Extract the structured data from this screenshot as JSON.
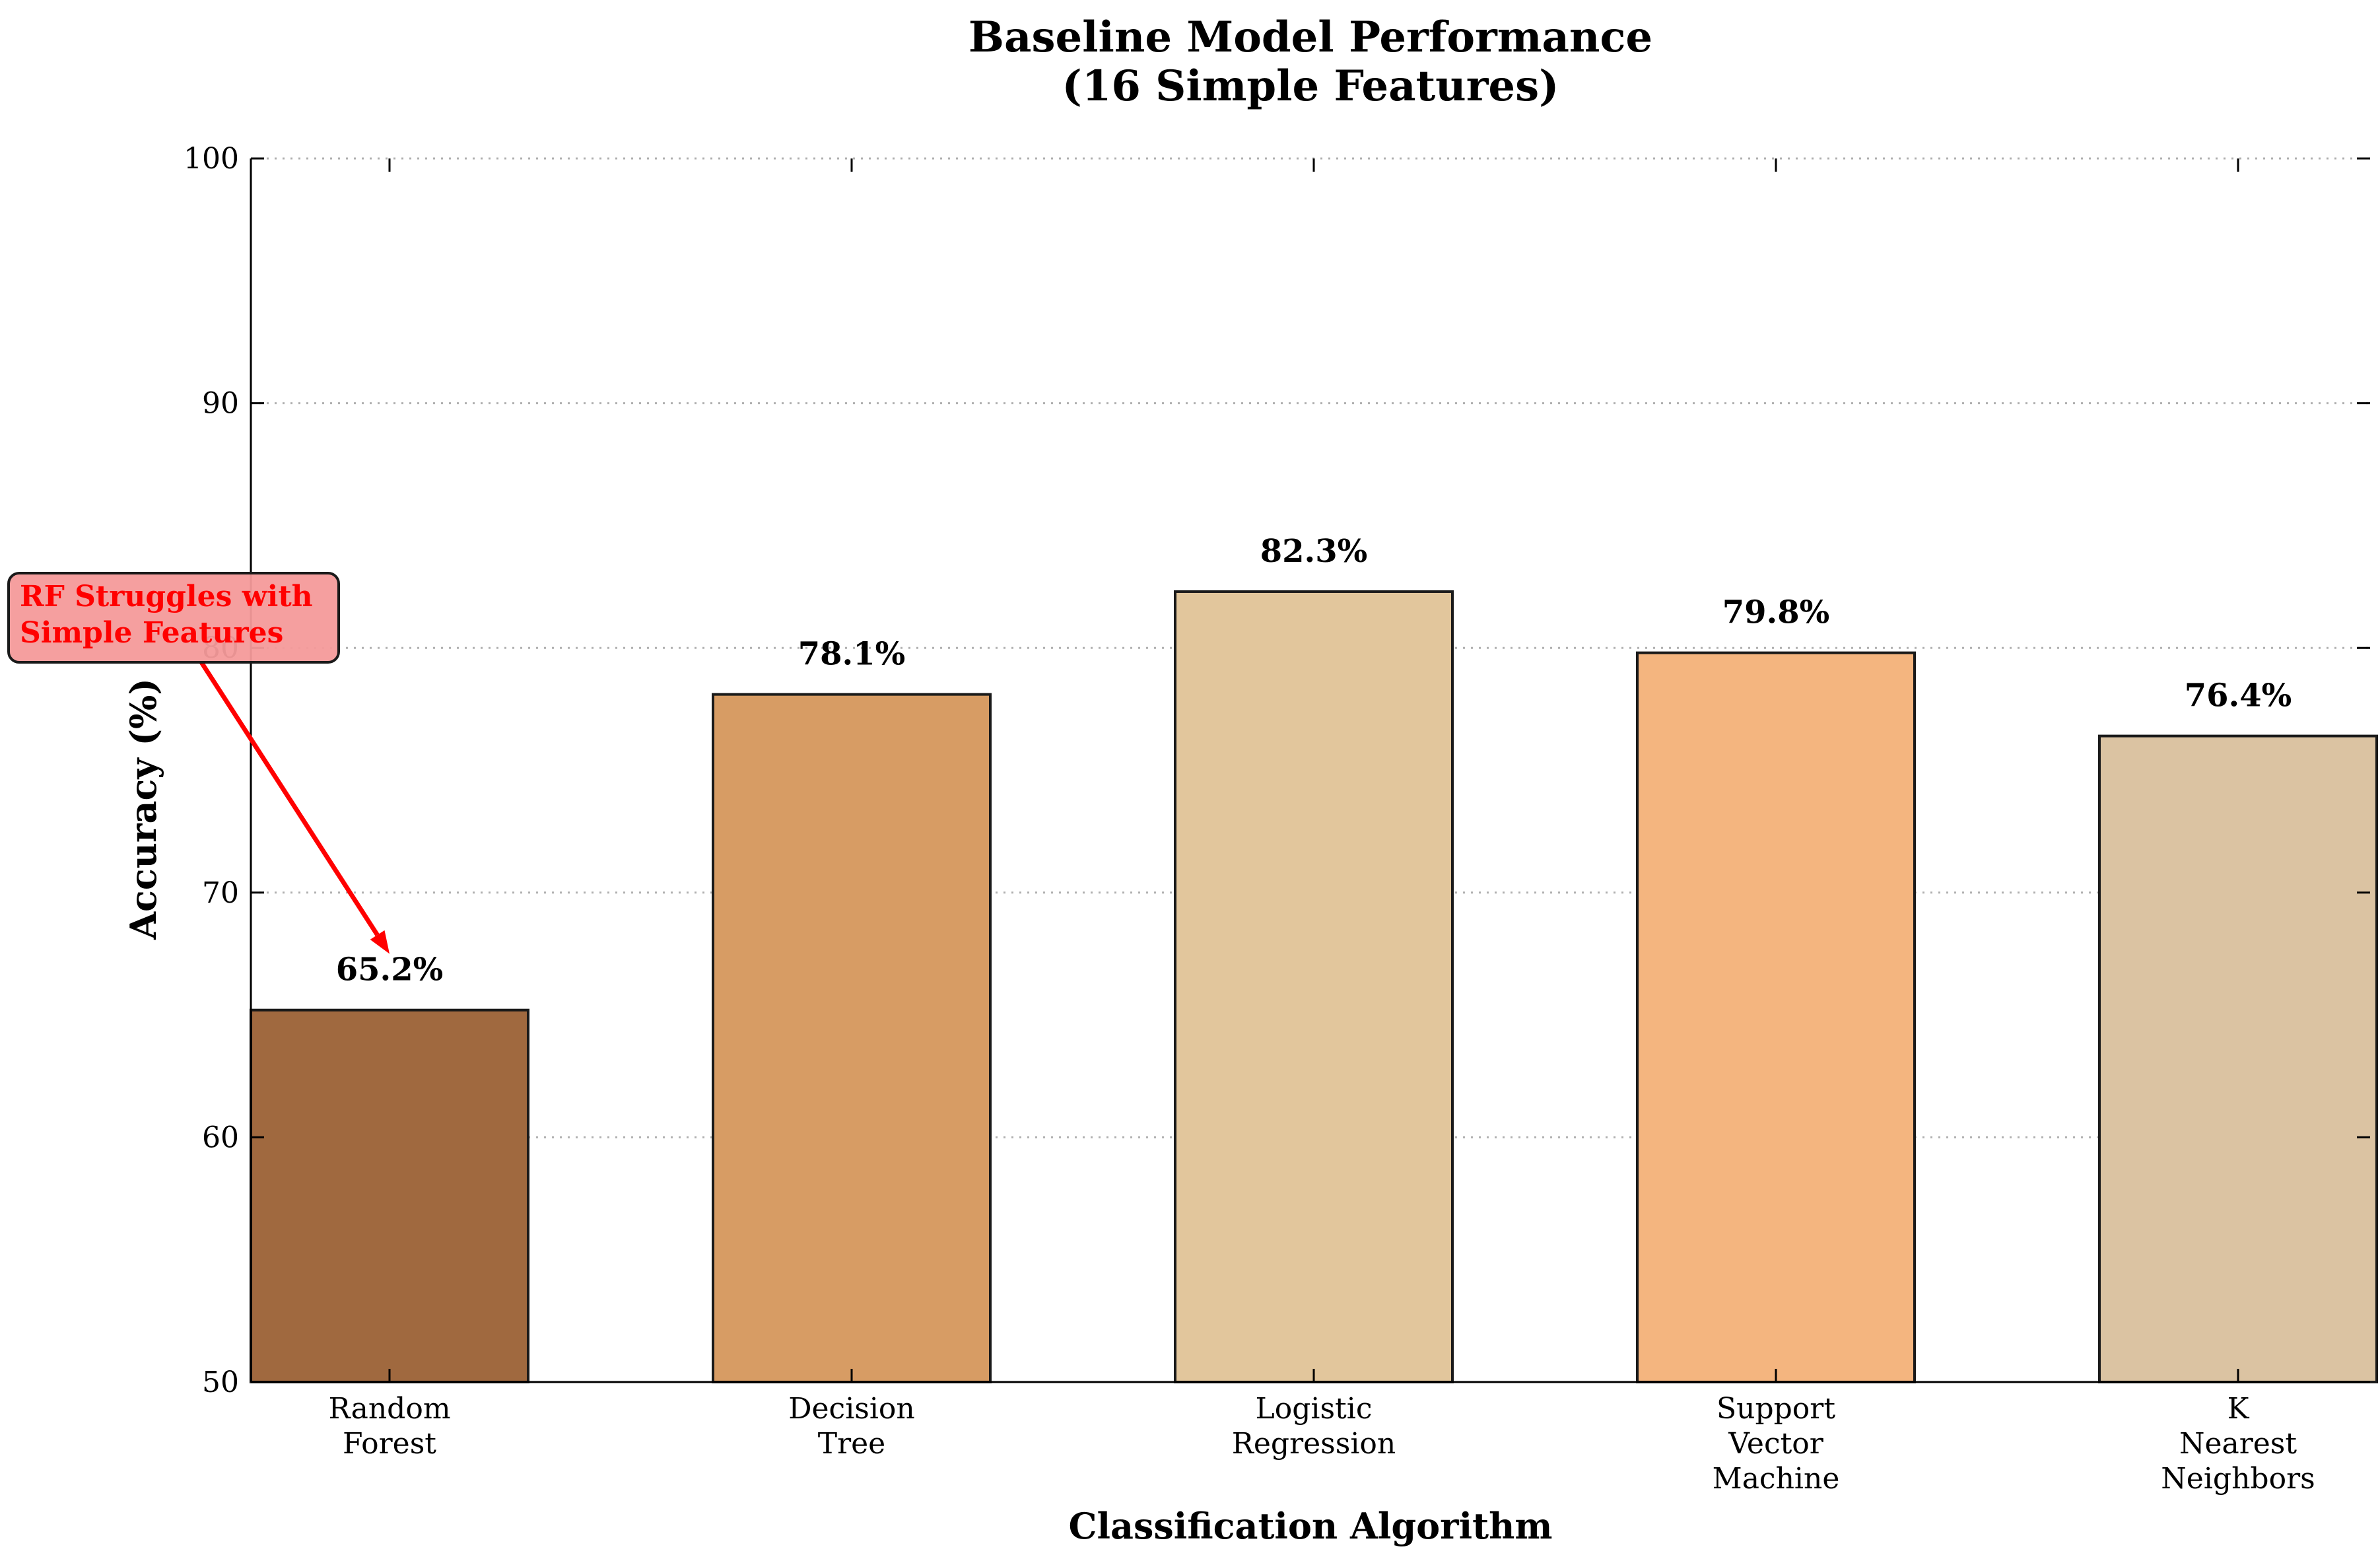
{
  "chart_data": {
    "type": "bar",
    "title": [
      "Baseline Model Performance",
      "(16 Simple Features)"
    ],
    "xlabel": "Classification Algorithm",
    "ylabel": "Accuracy (%)",
    "ylim": [
      50,
      100
    ],
    "yticks": [
      50,
      60,
      70,
      80,
      90,
      100
    ],
    "grid": "horizontal dotted",
    "categories": [
      [
        "Random",
        "Forest"
      ],
      [
        "Decision",
        "Tree"
      ],
      [
        "Logistic",
        "Regression"
      ],
      [
        "Support",
        "Vector",
        "Machine"
      ],
      [
        "K",
        "Nearest",
        "Neighbors"
      ]
    ],
    "values": [
      65.2,
      78.1,
      82.3,
      79.8,
      76.4
    ],
    "value_labels": [
      "65.2%",
      "78.1%",
      "82.3%",
      "79.8%",
      "76.4%"
    ],
    "colors": [
      "#a0693f",
      "#d79c64",
      "#e2c69c",
      "#f4b57f",
      "#dbc3a2"
    ],
    "annotation": {
      "text": [
        "RF Struggles with",
        "Simple Features"
      ],
      "target_category": 0,
      "target_value": 67.5,
      "text_color": "#ff0000",
      "box_color": "#f49a9a",
      "arrow_color": "#ff0000"
    }
  }
}
